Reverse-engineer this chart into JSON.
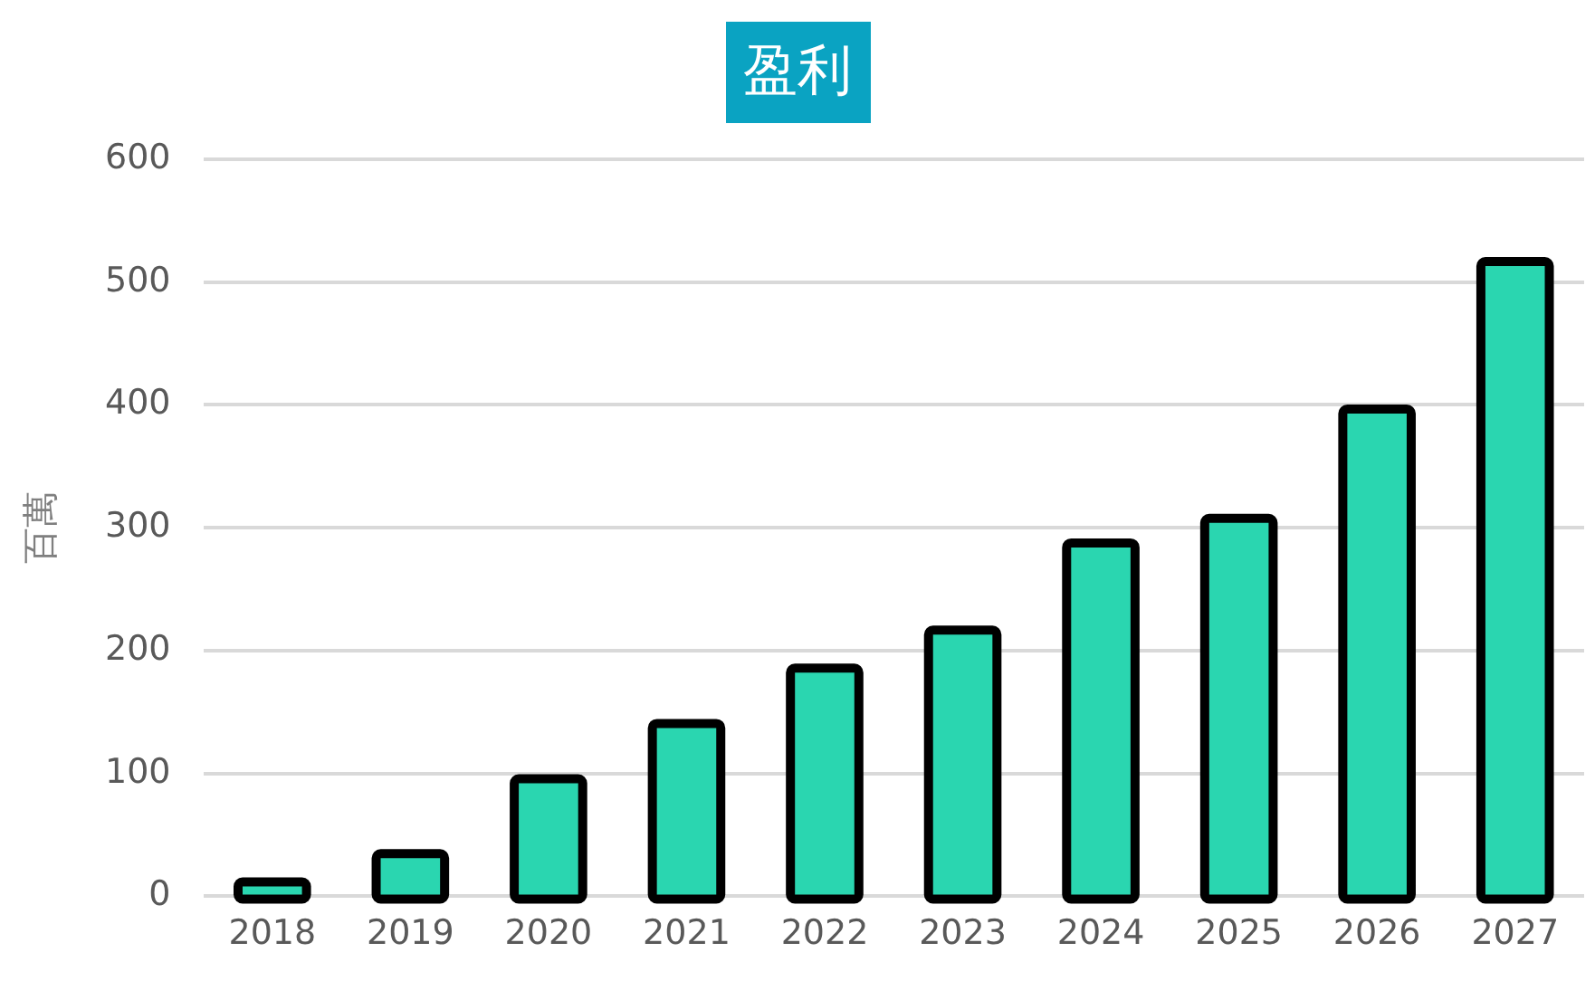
{
  "chart_data": {
    "type": "bar",
    "title": "盈利",
    "ylabel": "百萬",
    "categories": [
      "2018",
      "2019",
      "2020",
      "2021",
      "2022",
      "2023",
      "2024",
      "2025",
      "2026",
      "2027"
    ],
    "series": [
      {
        "color": "#2ad6b0",
        "values": [
          8,
          31,
          92,
          137,
          182,
          213,
          284,
          304,
          393,
          513
        ]
      }
    ],
    "ylim": [
      0,
      600
    ],
    "yticks": [
      0,
      100,
      200,
      300,
      400,
      500,
      600
    ],
    "grid": "y",
    "legend": false
  }
}
